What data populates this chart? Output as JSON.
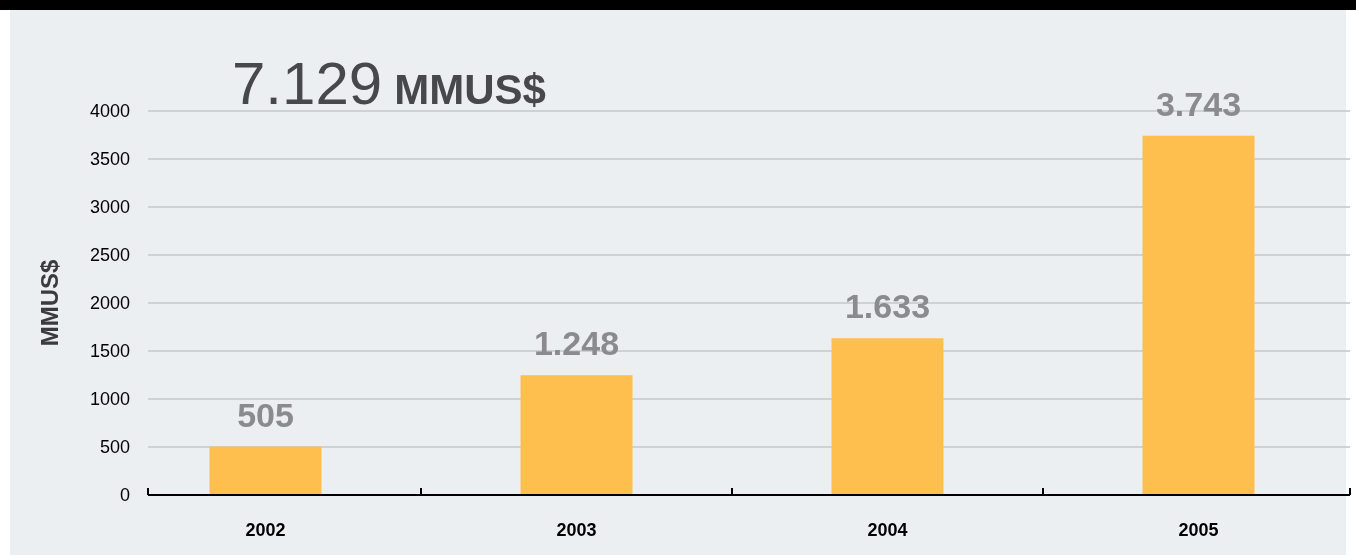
{
  "chart_data": {
    "type": "bar",
    "title": "7.129 MMUS$",
    "ylabel": "MMUS$",
    "categories": [
      "2002",
      "2003",
      "2004",
      "2005"
    ],
    "values": [
      505,
      1248,
      1633,
      3743
    ],
    "value_labels": [
      "505",
      "1.248",
      "1.633",
      "3.743"
    ],
    "color": "#ffbf4f",
    "ylim": [
      0,
      4000
    ],
    "yticks": [
      0,
      500,
      1000,
      1500,
      2000,
      2500,
      3000,
      3500,
      4000
    ],
    "grid": "y"
  }
}
